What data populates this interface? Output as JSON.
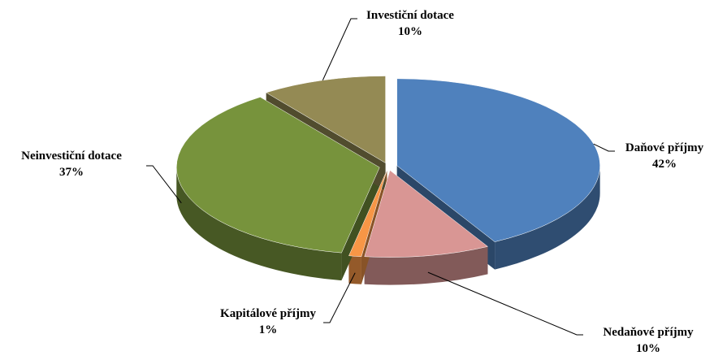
{
  "chart_data": {
    "type": "pie",
    "categories": [
      "Daňové příjmy",
      "Nedaňové příjmy",
      "Kapitálové příjmy",
      "Neinvestiční dotace",
      "Investiční dotace"
    ],
    "values": [
      42,
      10,
      1,
      37,
      10
    ],
    "value_labels": [
      "42%",
      "10%",
      "1%",
      "37%",
      "10%"
    ],
    "colors": [
      "#4f81bd",
      "#d99694",
      "#f79646",
      "#77933c",
      "#948a54"
    ]
  }
}
